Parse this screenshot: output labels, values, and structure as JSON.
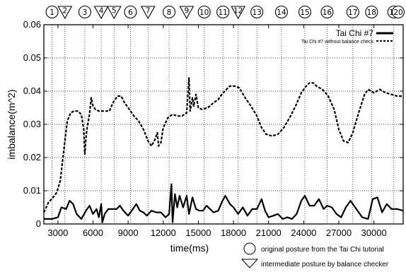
{
  "chart_data": {
    "type": "line",
    "xlabel": "time(ms)",
    "ylabel": "imbalance(m^2)",
    "xlim": [
      1800,
      32500
    ],
    "ylim": [
      0,
      0.06
    ],
    "x_ticks": [
      3000,
      6000,
      9000,
      12000,
      15000,
      18000,
      21000,
      24000,
      27000,
      30000
    ],
    "y_ticks": [
      0,
      0.01,
      0.02,
      0.03,
      0.04,
      0.05,
      0.06
    ],
    "y_tick_labels": [
      "0",
      "0.01",
      "0.02",
      "0.03",
      "0.04",
      "0.05",
      "0.06"
    ],
    "grid": "vertical dotted lines at posture markers, dotted horizontal lines at y ticks",
    "legend_position": "top-right",
    "series": [
      {
        "name": "Tai Chi #7",
        "style": "solid",
        "points": [
          [
            1800,
            0.0015
          ],
          [
            2500,
            0.0015
          ],
          [
            3000,
            0.002
          ],
          [
            3300,
            0.005
          ],
          [
            3700,
            0.0045
          ],
          [
            4000,
            0.007
          ],
          [
            4300,
            0.006
          ],
          [
            4600,
            0.003
          ],
          [
            5000,
            0.0015
          ],
          [
            5400,
            0.004
          ],
          [
            5700,
            0.0055
          ],
          [
            6000,
            0.003
          ],
          [
            6300,
            0.0045
          ],
          [
            6500,
            0.002
          ],
          [
            6700,
            0.006
          ],
          [
            6800,
            0.0005
          ],
          [
            7000,
            0.003
          ],
          [
            7300,
            0.0045
          ],
          [
            7600,
            0.0045
          ],
          [
            8000,
            0.0045
          ],
          [
            8300,
            0.0055
          ],
          [
            8600,
            0.004
          ],
          [
            9000,
            0.0025
          ],
          [
            9400,
            0.0045
          ],
          [
            9700,
            0.006
          ],
          [
            10000,
            0.004
          ],
          [
            10300,
            0.0035
          ],
          [
            10600,
            0.0025
          ],
          [
            11000,
            0.004
          ],
          [
            11400,
            0.0035
          ],
          [
            11800,
            0.0035
          ],
          [
            12200,
            0.002
          ],
          [
            12500,
            0.003
          ],
          [
            12700,
            0.012
          ],
          [
            12800,
            0.0005
          ],
          [
            13000,
            0.009
          ],
          [
            13200,
            0.005
          ],
          [
            13400,
            0.0085
          ],
          [
            13700,
            0.005
          ],
          [
            14000,
            0.0085
          ],
          [
            14200,
            0.003
          ],
          [
            14500,
            0.008
          ],
          [
            14800,
            0.0045
          ],
          [
            15100,
            0.004
          ],
          [
            15400,
            0.004
          ],
          [
            15700,
            0.0055
          ],
          [
            16000,
            0.0045
          ],
          [
            16300,
            0.0035
          ],
          [
            16700,
            0.004
          ],
          [
            17000,
            0.0065
          ],
          [
            17300,
            0.0085
          ],
          [
            17700,
            0.006
          ],
          [
            18000,
            0.005
          ],
          [
            18400,
            0.003
          ],
          [
            18800,
            0.005
          ],
          [
            19200,
            0.0025
          ],
          [
            19600,
            0.0045
          ],
          [
            20000,
            0.0045
          ],
          [
            20400,
            0.0075
          ],
          [
            20700,
            0.004
          ],
          [
            21000,
            0.002
          ],
          [
            21400,
            0.0025
          ],
          [
            21800,
            0.003
          ],
          [
            22200,
            0.0015
          ],
          [
            22600,
            0.002
          ],
          [
            23000,
            0.0015
          ],
          [
            23400,
            0.003
          ],
          [
            23800,
            0.007
          ],
          [
            24100,
            0.0085
          ],
          [
            24500,
            0.0055
          ],
          [
            24900,
            0.0055
          ],
          [
            25300,
            0.0075
          ],
          [
            25700,
            0.0045
          ],
          [
            26000,
            0.0055
          ],
          [
            26400,
            0.005
          ],
          [
            26800,
            0.003
          ],
          [
            27200,
            0.002
          ],
          [
            27600,
            0.005
          ],
          [
            28000,
            0.007
          ],
          [
            28500,
            0.0045
          ],
          [
            29000,
            0.002
          ],
          [
            29500,
            0.0015
          ],
          [
            29900,
            0.0075
          ],
          [
            30300,
            0.008
          ],
          [
            30700,
            0.0035
          ],
          [
            31100,
            0.006
          ],
          [
            31500,
            0.0045
          ],
          [
            32000,
            0.0045
          ],
          [
            32500,
            0.004
          ]
        ]
      },
      {
        "name": "Tai Chi #7 without balance check",
        "style": "dashed",
        "points": [
          [
            1800,
            0.0035
          ],
          [
            2200,
            0.0065
          ],
          [
            2600,
            0.008
          ],
          [
            2900,
            0.0095
          ],
          [
            3200,
            0.013
          ],
          [
            3500,
            0.022
          ],
          [
            3800,
            0.031
          ],
          [
            4100,
            0.0335
          ],
          [
            4400,
            0.034
          ],
          [
            4700,
            0.034
          ],
          [
            5000,
            0.033
          ],
          [
            5200,
            0.0285
          ],
          [
            5300,
            0.021
          ],
          [
            5400,
            0.026
          ],
          [
            5500,
            0.029
          ],
          [
            5700,
            0.033
          ],
          [
            5850,
            0.038
          ],
          [
            6000,
            0.0355
          ],
          [
            6200,
            0.0345
          ],
          [
            6500,
            0.034
          ],
          [
            7000,
            0.034
          ],
          [
            7400,
            0.034
          ],
          [
            7700,
            0.0365
          ],
          [
            8100,
            0.0385
          ],
          [
            8400,
            0.0385
          ],
          [
            8700,
            0.0365
          ],
          [
            9100,
            0.0345
          ],
          [
            9500,
            0.0325
          ],
          [
            9900,
            0.031
          ],
          [
            10300,
            0.0285
          ],
          [
            10700,
            0.025
          ],
          [
            11000,
            0.0235
          ],
          [
            11300,
            0.0255
          ],
          [
            11500,
            0.0275
          ],
          [
            11600,
            0.0235
          ],
          [
            11800,
            0.0245
          ],
          [
            12000,
            0.029
          ],
          [
            12400,
            0.032
          ],
          [
            12800,
            0.033
          ],
          [
            13200,
            0.0325
          ],
          [
            13600,
            0.0325
          ],
          [
            14000,
            0.0335
          ],
          [
            14200,
            0.044
          ],
          [
            14300,
            0.034
          ],
          [
            14500,
            0.038
          ],
          [
            14600,
            0.0355
          ],
          [
            14800,
            0.039
          ],
          [
            15000,
            0.035
          ],
          [
            15300,
            0.0345
          ],
          [
            15800,
            0.035
          ],
          [
            16300,
            0.0365
          ],
          [
            16700,
            0.0375
          ],
          [
            17000,
            0.039
          ],
          [
            17400,
            0.0405
          ],
          [
            17700,
            0.0415
          ],
          [
            18100,
            0.0415
          ],
          [
            18500,
            0.041
          ],
          [
            19000,
            0.038
          ],
          [
            19500,
            0.0355
          ],
          [
            20000,
            0.0325
          ],
          [
            20400,
            0.029
          ],
          [
            20800,
            0.027
          ],
          [
            21300,
            0.0265
          ],
          [
            21800,
            0.027
          ],
          [
            22300,
            0.029
          ],
          [
            22800,
            0.032
          ],
          [
            23300,
            0.0355
          ],
          [
            23800,
            0.0395
          ],
          [
            24200,
            0.0415
          ],
          [
            24500,
            0.0425
          ],
          [
            24800,
            0.0425
          ],
          [
            25100,
            0.0415
          ],
          [
            25600,
            0.0405
          ],
          [
            26100,
            0.0385
          ],
          [
            26600,
            0.0345
          ],
          [
            27000,
            0.0285
          ],
          [
            27400,
            0.025
          ],
          [
            27800,
            0.0245
          ],
          [
            28200,
            0.0275
          ],
          [
            28700,
            0.0335
          ],
          [
            29200,
            0.039
          ],
          [
            29500,
            0.0405
          ],
          [
            30000,
            0.0395
          ],
          [
            30500,
            0.0405
          ],
          [
            31000,
            0.0395
          ],
          [
            31500,
            0.039
          ],
          [
            32000,
            0.0385
          ],
          [
            32500,
            0.0385
          ]
        ]
      }
    ],
    "posture_markers": [
      {
        "label": "1",
        "shape": "circle",
        "x": 2500
      },
      {
        "label": "2",
        "shape": "triangle",
        "x": 3600
      },
      {
        "label": "3",
        "shape": "circle",
        "x": 5300
      },
      {
        "label": "4",
        "shape": "triangle",
        "x": 6700
      },
      {
        "label": "5",
        "shape": "triangle",
        "x": 7800
      },
      {
        "label": "6",
        "shape": "circle",
        "x": 9200
      },
      {
        "label": "7",
        "shape": "triangle",
        "x": 10700
      },
      {
        "label": "8",
        "shape": "circle",
        "x": 12500
      },
      {
        "label": "9",
        "shape": "triangle",
        "x": 14000
      },
      {
        "label": "10",
        "shape": "circle",
        "x": 15500
      },
      {
        "label": "11",
        "shape": "circle",
        "x": 17100
      },
      {
        "label": "12",
        "shape": "triangle",
        "x": 18400
      },
      {
        "label": "13",
        "shape": "circle",
        "x": 20000
      },
      {
        "label": "14",
        "shape": "circle",
        "x": 22100
      },
      {
        "label": "15",
        "shape": "circle",
        "x": 24100
      },
      {
        "label": "16",
        "shape": "circle",
        "x": 26000
      },
      {
        "label": "17",
        "shape": "circle",
        "x": 28200
      },
      {
        "label": "18",
        "shape": "circle",
        "x": 29800
      },
      {
        "label": "19",
        "shape": "circle",
        "x": 31700
      },
      {
        "label": "20",
        "shape": "circle",
        "x": 33500
      }
    ],
    "notes": {
      "circle": "original posture from the Tai Chi tutorial",
      "triangle": "intermediate posture by balance checker"
    }
  }
}
